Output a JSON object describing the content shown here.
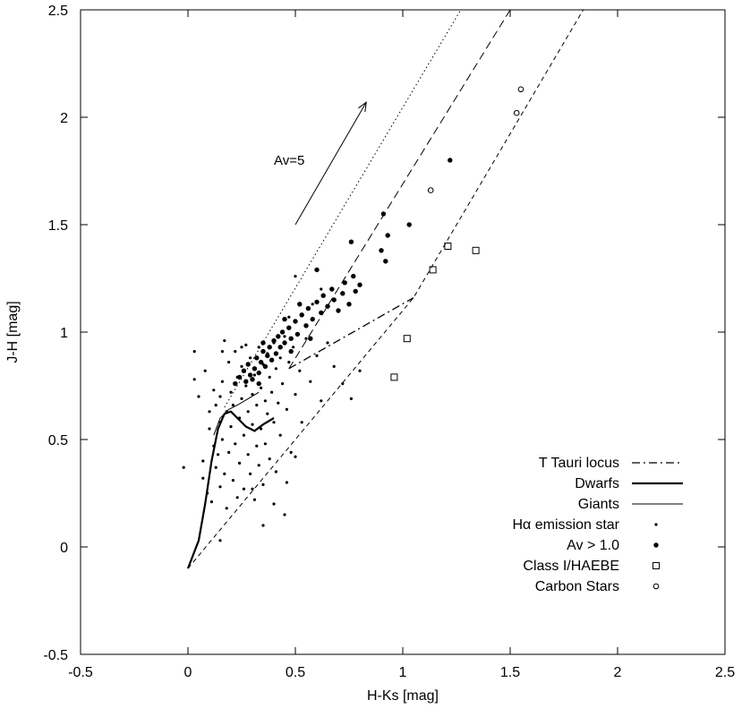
{
  "chart_data": {
    "type": "scatter",
    "xlabel": "H-Ks [mag]",
    "ylabel": "J-H [mag]",
    "xlim": [
      -0.5,
      2.5
    ],
    "ylim": [
      -0.5,
      2.5
    ],
    "x_ticks": [
      "-0.5",
      "0",
      "0.5",
      "1",
      "1.5",
      "2",
      "2.5"
    ],
    "y_ticks": [
      "-0.5",
      "0",
      "0.5",
      "1",
      "1.5",
      "2",
      "2.5"
    ],
    "grid": false,
    "legend_position": "bottom-right",
    "annotation": {
      "text": "Av=5",
      "arrow_from": [
        0.5,
        1.5
      ],
      "arrow_to": [
        0.83,
        2.07
      ]
    },
    "legend": [
      {
        "label": "T Tauri locus",
        "style": "dashdot"
      },
      {
        "label": "Dwarfs",
        "style": "thick-line"
      },
      {
        "label": "Giants",
        "style": "thin-line"
      },
      {
        "label": "Hα emission star",
        "style": "small-dot"
      },
      {
        "label": "Av > 1.0",
        "style": "filled-circle"
      },
      {
        "label": "Class I/HAEBE",
        "style": "open-square"
      },
      {
        "label": "Carbon Stars",
        "style": "open-circle"
      }
    ],
    "lines": {
      "t_tauri_locus": [
        [
          0.47,
          0.83
        ],
        [
          1.05,
          1.16
        ]
      ],
      "dwarfs": [
        [
          0.0,
          -0.1
        ],
        [
          0.05,
          0.03
        ],
        [
          0.08,
          0.2
        ],
        [
          0.11,
          0.4
        ],
        [
          0.14,
          0.55
        ],
        [
          0.17,
          0.62
        ],
        [
          0.2,
          0.63
        ],
        [
          0.23,
          0.6
        ],
        [
          0.27,
          0.56
        ],
        [
          0.31,
          0.54
        ],
        [
          0.35,
          0.57
        ],
        [
          0.4,
          0.6
        ]
      ],
      "giants": [
        [
          0.12,
          0.52
        ],
        [
          0.15,
          0.6
        ],
        [
          0.19,
          0.64
        ],
        [
          0.23,
          0.66
        ],
        [
          0.28,
          0.69
        ],
        [
          0.33,
          0.72
        ]
      ],
      "reddening_lines": [
        {
          "style": "dotted",
          "points": [
            [
              0.17,
              0.65
            ],
            [
              1.27,
              2.5
            ]
          ]
        },
        {
          "style": "dashed",
          "points": [
            [
              0.47,
              0.83
            ],
            [
              1.5,
              2.5
            ]
          ]
        },
        {
          "style": "short-dashed",
          "points": [
            [
              0.0,
              -0.1
            ],
            [
              1.05,
              1.16
            ],
            [
              1.84,
              2.5
            ]
          ]
        }
      ]
    },
    "series": [
      {
        "name": "Hα emission star",
        "marker": "small-dot",
        "points": [
          [
            -0.02,
            0.37
          ],
          [
            0.03,
            0.91
          ],
          [
            0.03,
            0.78
          ],
          [
            0.05,
            0.7
          ],
          [
            0.07,
            0.4
          ],
          [
            0.07,
            0.32
          ],
          [
            0.08,
            0.82
          ],
          [
            0.09,
            0.25
          ],
          [
            0.1,
            0.55
          ],
          [
            0.1,
            0.63
          ],
          [
            0.11,
            0.21
          ],
          [
            0.12,
            0.47
          ],
          [
            0.12,
            0.73
          ],
          [
            0.13,
            0.66
          ],
          [
            0.13,
            0.37
          ],
          [
            0.14,
            0.43
          ],
          [
            0.15,
            0.7
          ],
          [
            0.15,
            0.58
          ],
          [
            0.15,
            0.28
          ],
          [
            0.16,
            0.77
          ],
          [
            0.16,
            0.5
          ],
          [
            0.17,
            0.34
          ],
          [
            0.17,
            0.96
          ],
          [
            0.18,
            0.63
          ],
          [
            0.18,
            0.18
          ],
          [
            0.19,
            0.86
          ],
          [
            0.19,
            0.44
          ],
          [
            0.2,
            0.72
          ],
          [
            0.2,
            0.56
          ],
          [
            0.21,
            0.31
          ],
          [
            0.21,
            0.66
          ],
          [
            0.22,
            0.91
          ],
          [
            0.22,
            0.48
          ],
          [
            0.23,
            0.23
          ],
          [
            0.23,
            0.79
          ],
          [
            0.24,
            0.6
          ],
          [
            0.24,
            0.39
          ],
          [
            0.25,
            0.84
          ],
          [
            0.25,
            0.69
          ],
          [
            0.26,
            0.52
          ],
          [
            0.26,
            0.27
          ],
          [
            0.27,
            0.94
          ],
          [
            0.27,
            0.75
          ],
          [
            0.28,
            0.43
          ],
          [
            0.28,
            0.63
          ],
          [
            0.29,
            0.34
          ],
          [
            0.29,
            0.88
          ],
          [
            0.3,
            0.71
          ],
          [
            0.3,
            0.57
          ],
          [
            0.31,
            0.22
          ],
          [
            0.31,
            0.8
          ],
          [
            0.32,
            0.47
          ],
          [
            0.32,
            0.66
          ],
          [
            0.33,
            0.93
          ],
          [
            0.33,
            0.38
          ],
          [
            0.34,
            0.74
          ],
          [
            0.34,
            0.55
          ],
          [
            0.35,
            0.85
          ],
          [
            0.35,
            0.29
          ],
          [
            0.36,
            0.68
          ],
          [
            0.36,
            0.48
          ],
          [
            0.37,
            0.9
          ],
          [
            0.37,
            0.62
          ],
          [
            0.38,
            0.79
          ],
          [
            0.38,
            0.41
          ],
          [
            0.39,
            0.72
          ],
          [
            0.4,
            0.95
          ],
          [
            0.4,
            0.58
          ],
          [
            0.41,
            0.83
          ],
          [
            0.41,
            0.35
          ],
          [
            0.42,
            0.67
          ],
          [
            0.43,
            0.88
          ],
          [
            0.43,
            0.52
          ],
          [
            0.44,
            0.76
          ],
          [
            0.45,
            0.98
          ],
          [
            0.46,
            0.64
          ],
          [
            0.47,
            0.86
          ],
          [
            0.48,
            0.44
          ],
          [
            0.49,
            0.93
          ],
          [
            0.5,
            0.71
          ],
          [
            0.52,
            0.82
          ],
          [
            0.53,
            0.58
          ],
          [
            0.55,
            0.97
          ],
          [
            0.57,
            0.77
          ],
          [
            0.6,
            0.89
          ],
          [
            0.62,
            0.68
          ],
          [
            0.65,
            0.95
          ],
          [
            0.68,
            0.84
          ],
          [
            0.72,
            0.76
          ],
          [
            0.76,
            0.69
          ],
          [
            0.8,
            0.82
          ],
          [
            0.5,
            1.26
          ],
          [
            0.58,
            1.13
          ],
          [
            0.62,
            1.2
          ],
          [
            0.47,
            1.07
          ],
          [
            0.25,
            0.93
          ],
          [
            0.16,
            0.91
          ],
          [
            0.35,
            0.1
          ],
          [
            0.3,
            0.27
          ],
          [
            0.4,
            0.2
          ],
          [
            0.46,
            0.3
          ],
          [
            0.5,
            0.42
          ],
          [
            0.15,
            0.03
          ],
          [
            0.45,
            0.15
          ]
        ]
      },
      {
        "name": "Av > 1.0",
        "marker": "filled-circle",
        "points": [
          [
            0.22,
            0.76
          ],
          [
            0.24,
            0.79
          ],
          [
            0.26,
            0.82
          ],
          [
            0.27,
            0.77
          ],
          [
            0.28,
            0.85
          ],
          [
            0.29,
            0.8
          ],
          [
            0.3,
            0.78
          ],
          [
            0.31,
            0.83
          ],
          [
            0.32,
            0.88
          ],
          [
            0.33,
            0.81
          ],
          [
            0.34,
            0.86
          ],
          [
            0.35,
            0.91
          ],
          [
            0.36,
            0.84
          ],
          [
            0.37,
            0.89
          ],
          [
            0.38,
            0.93
          ],
          [
            0.39,
            0.87
          ],
          [
            0.4,
            0.96
          ],
          [
            0.41,
            0.9
          ],
          [
            0.42,
            0.98
          ],
          [
            0.43,
            0.93
          ],
          [
            0.44,
            1.0
          ],
          [
            0.45,
            0.95
          ],
          [
            0.47,
            1.02
          ],
          [
            0.48,
            0.97
          ],
          [
            0.5,
            1.05
          ],
          [
            0.51,
            0.99
          ],
          [
            0.53,
            1.08
          ],
          [
            0.55,
            1.03
          ],
          [
            0.56,
            1.11
          ],
          [
            0.58,
            1.06
          ],
          [
            0.6,
            1.14
          ],
          [
            0.62,
            1.09
          ],
          [
            0.63,
            1.17
          ],
          [
            0.65,
            1.12
          ],
          [
            0.67,
            1.2
          ],
          [
            0.68,
            1.15
          ],
          [
            0.7,
            1.1
          ],
          [
            0.72,
            1.18
          ],
          [
            0.73,
            1.23
          ],
          [
            0.75,
            1.13
          ],
          [
            0.77,
            1.26
          ],
          [
            0.78,
            1.19
          ],
          [
            0.8,
            1.22
          ],
          [
            0.35,
            0.95
          ],
          [
            0.45,
            1.06
          ],
          [
            0.52,
            1.13
          ],
          [
            0.48,
            0.91
          ],
          [
            0.57,
            0.97
          ],
          [
            0.33,
            0.76
          ],
          [
            0.6,
            1.29
          ],
          [
            0.76,
            1.42
          ],
          [
            0.9,
            1.38
          ],
          [
            0.92,
            1.33
          ],
          [
            0.93,
            1.45
          ],
          [
            0.91,
            1.55
          ],
          [
            1.03,
            1.5
          ],
          [
            1.22,
            1.8
          ]
        ]
      },
      {
        "name": "Class I/HAEBE",
        "marker": "open-square",
        "points": [
          [
            0.96,
            0.79
          ],
          [
            1.02,
            0.97
          ],
          [
            1.14,
            1.29
          ],
          [
            1.21,
            1.4
          ],
          [
            1.34,
            1.38
          ]
        ]
      },
      {
        "name": "Carbon Stars",
        "marker": "open-circle",
        "points": [
          [
            1.13,
            1.66
          ],
          [
            1.53,
            2.02
          ],
          [
            1.55,
            2.13
          ]
        ]
      }
    ]
  }
}
